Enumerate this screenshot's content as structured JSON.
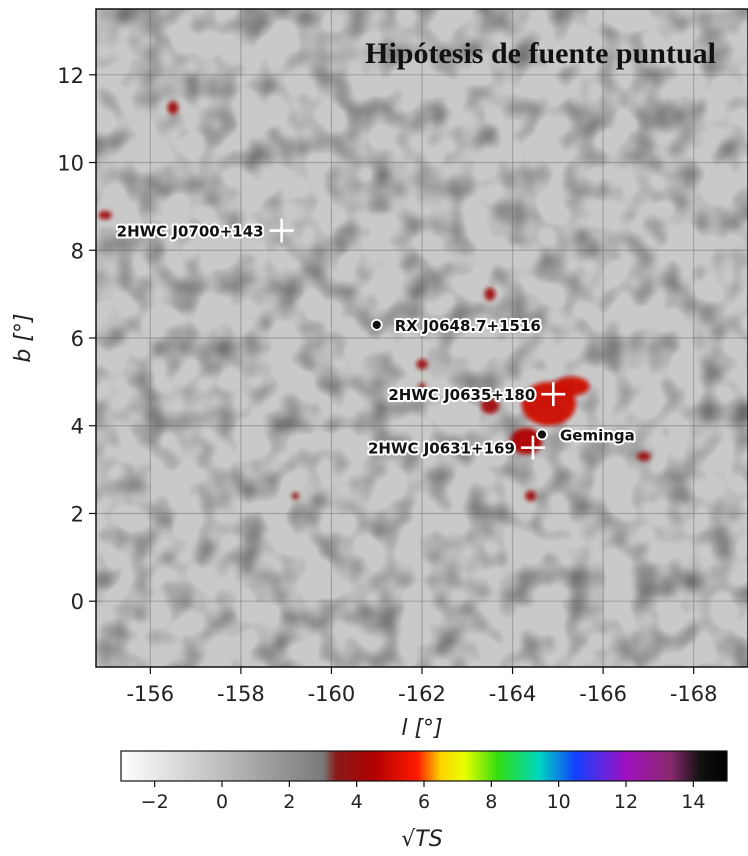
{
  "chart_data": {
    "type": "heatmap",
    "title": "Hipótesis de fuente puntual",
    "xlabel": "l [°]",
    "ylabel": "b [°]",
    "xlim": [
      -154.8,
      -169.2
    ],
    "ylim": [
      -1.5,
      13.5
    ],
    "x_ticks": [
      -156,
      -158,
      -160,
      -162,
      -164,
      -166,
      -168
    ],
    "y_ticks": [
      0,
      2,
      4,
      6,
      8,
      10,
      12
    ],
    "x_tick_labels": [
      "-156",
      "-158",
      "-160",
      "-162",
      "-164",
      "-166",
      "-168"
    ],
    "y_tick_labels": [
      "0",
      "2",
      "4",
      "6",
      "8",
      "10",
      "12"
    ],
    "grid": true,
    "colorbar": {
      "label": "√TS",
      "min": -3,
      "max": 15,
      "ticks": [
        -2,
        0,
        2,
        4,
        6,
        8,
        10,
        12,
        14
      ],
      "tick_labels": [
        "−2",
        "0",
        "2",
        "4",
        "6",
        "8",
        "10",
        "12",
        "14"
      ],
      "stops": [
        {
          "value": -3,
          "color": "#ffffff"
        },
        {
          "value": 3.0,
          "color": "#7a7a7a"
        },
        {
          "value": 3.4,
          "color": "#8a1a1a"
        },
        {
          "value": 4.5,
          "color": "#b00000"
        },
        {
          "value": 5.8,
          "color": "#ff1a00"
        },
        {
          "value": 6.5,
          "color": "#ffd400"
        },
        {
          "value": 7.2,
          "color": "#e8ff00"
        },
        {
          "value": 8.2,
          "color": "#33dd11"
        },
        {
          "value": 9.4,
          "color": "#00d8c0"
        },
        {
          "value": 10.5,
          "color": "#1440ff"
        },
        {
          "value": 12.0,
          "color": "#a010c0"
        },
        {
          "value": 13.3,
          "color": "#8b2a70"
        },
        {
          "value": 14.2,
          "color": "#111111"
        },
        {
          "value": 15,
          "color": "#000000"
        }
      ]
    },
    "sources": [
      {
        "name": "2HWC J0700+143",
        "l": -158.9,
        "b": 8.45,
        "marker": "cross",
        "label_side": "left"
      },
      {
        "name": "RX J0648.7+1516",
        "l": -161.0,
        "b": 6.3,
        "marker": "dot",
        "label_side": "right"
      },
      {
        "name": "2HWC J0635+180",
        "l": -164.9,
        "b": 4.72,
        "marker": "cross",
        "label_side": "left"
      },
      {
        "name": "Geminga",
        "l": -164.65,
        "b": 3.8,
        "marker": "dot",
        "label_side": "right"
      },
      {
        "name": "2HWC J0631+169",
        "l": -164.45,
        "b": 3.5,
        "marker": "cross",
        "label_side": "left"
      }
    ],
    "excess_regions": [
      {
        "l": -164.8,
        "b": 4.5,
        "rl": 0.6,
        "rb": 0.5,
        "value": 5.0
      },
      {
        "l": -165.3,
        "b": 4.9,
        "rl": 0.4,
        "rb": 0.22,
        "value": 5.0
      },
      {
        "l": -164.3,
        "b": 3.65,
        "rl": 0.35,
        "rb": 0.3,
        "value": 4.5
      },
      {
        "l": -163.5,
        "b": 4.45,
        "rl": 0.2,
        "rb": 0.18,
        "value": 4.0
      },
      {
        "l": -163.5,
        "b": 7.0,
        "rl": 0.12,
        "rb": 0.15,
        "value": 4.0
      },
      {
        "l": -166.9,
        "b": 3.3,
        "rl": 0.15,
        "rb": 0.1,
        "value": 4.0
      },
      {
        "l": -164.4,
        "b": 2.4,
        "rl": 0.12,
        "rb": 0.12,
        "value": 4.0
      },
      {
        "l": -162.0,
        "b": 5.4,
        "rl": 0.12,
        "rb": 0.12,
        "value": 4.0
      },
      {
        "l": -156.5,
        "b": 11.25,
        "rl": 0.12,
        "rb": 0.15,
        "value": 4.0
      },
      {
        "l": -155.0,
        "b": 8.8,
        "rl": 0.15,
        "rb": 0.1,
        "value": 4.0
      },
      {
        "l": -162.0,
        "b": 4.9,
        "rl": 0.08,
        "rb": 0.08,
        "value": 3.7
      },
      {
        "l": -159.2,
        "b": 2.4,
        "rl": 0.08,
        "rb": 0.08,
        "value": 3.6
      }
    ]
  }
}
